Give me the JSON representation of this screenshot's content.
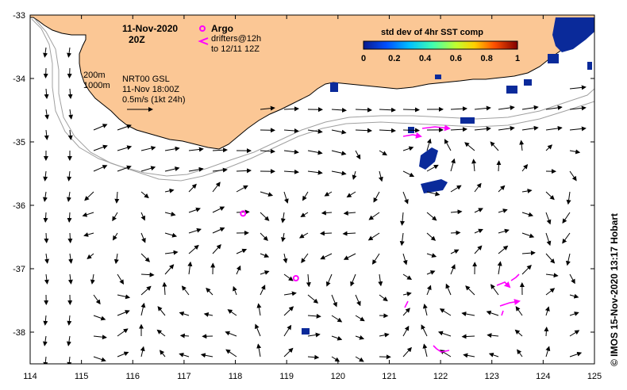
{
  "map": {
    "date": "11-Nov-2020",
    "time": "20Z",
    "legend_argo": "Argo",
    "legend_drifters_line1": "drifters@12h",
    "legend_drifters_line2": "to 12/11 12Z",
    "colorbar_title": "std dev of 4hr SST comp",
    "colorbar_ticks": [
      "0",
      "0.2",
      "0.4",
      "0.6",
      "0.8",
      "1"
    ],
    "isobath_200": "200m",
    "isobath_1000": "1000m",
    "product_line1": "NRT00 GSL",
    "product_line2": "11-Nov 18:00Z",
    "product_line3": "0.5m/s (1kt 24h)",
    "credit": "© IMOS 15-Nov-2020 13:17 Hobart",
    "x_ticks": [
      "114",
      "115",
      "116",
      "117",
      "118",
      "119",
      "120",
      "121",
      "122",
      "123",
      "124",
      "125"
    ],
    "y_ticks": [
      "-33",
      "-34",
      "-35",
      "-36",
      "-37",
      "-38"
    ],
    "lon_range": [
      114,
      125
    ],
    "lat_range": [
      -38.5,
      -33
    ],
    "colors": {
      "land": "#fbc795",
      "argo": "#ff00ff",
      "drifter": "#ff00ff",
      "isobath": "#a0a0a0",
      "sst_high": "#0a2a9a"
    },
    "argo_floats": [
      {
        "lon": 118.15,
        "lat": -36.13
      },
      {
        "lon": 119.18,
        "lat": -37.15
      }
    ],
    "sst_patches_text": ""
  }
}
